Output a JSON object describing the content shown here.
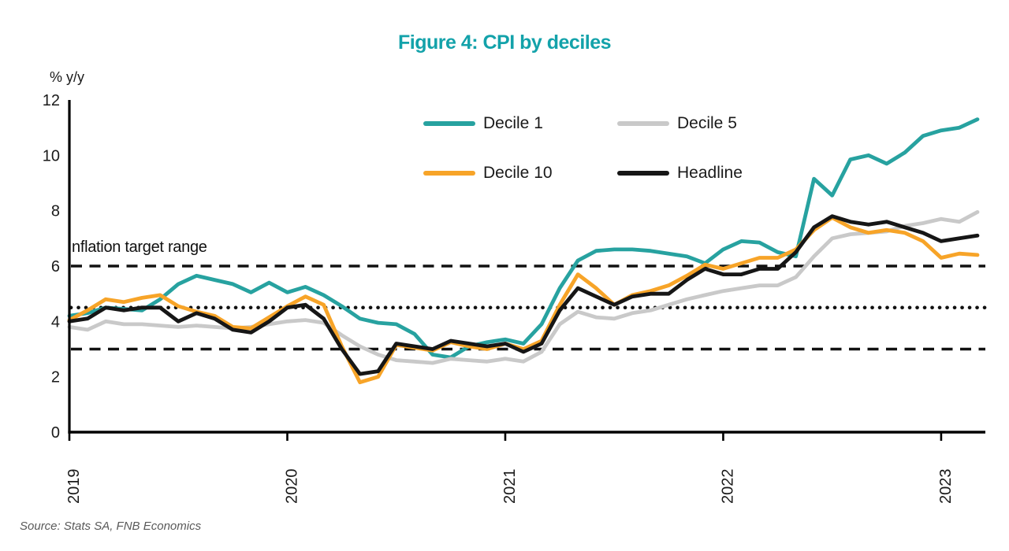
{
  "title": "Figure 4: CPI by deciles",
  "title_color": "#13a2aa",
  "source": "Source: Stats SA, FNB Economics",
  "annotation_label": "nflation target range",
  "legend": [
    {
      "label": "Decile 1",
      "color": "#27a2a0"
    },
    {
      "label": "Decile 5",
      "color": "#c9c9c9"
    },
    {
      "label": "Decile 10",
      "color": "#f7a428"
    },
    {
      "label": "Headline",
      "color": "#161616"
    }
  ],
  "chart_data": {
    "type": "line",
    "title": "Figure 4: CPI by deciles",
    "ylabel": "% y/y",
    "ylim": [
      0,
      12
    ],
    "y_ticks": [
      0,
      2,
      4,
      6,
      8,
      10,
      12
    ],
    "x_start": "2019-01",
    "x_end": "2023-03",
    "frequency": "monthly",
    "x_tick_labels": [
      "2019",
      "2020",
      "2021",
      "2022",
      "2023"
    ],
    "x_tick_month_indices": [
      0,
      12,
      24,
      36,
      48
    ],
    "grid": false,
    "legend_position": "top-center",
    "reference_lines": [
      {
        "name": "inflation-target-upper",
        "value": 6,
        "style": "dashed"
      },
      {
        "name": "inflation-target-midpoint",
        "value": 4.5,
        "style": "dotted"
      },
      {
        "name": "inflation-target-lower",
        "value": 3,
        "style": "dashed"
      }
    ],
    "annotation": {
      "text": "nflation target range",
      "near_value": 6.4
    },
    "series": [
      {
        "name": "Decile 1",
        "color": "#27a2a0",
        "values": [
          4.2,
          4.3,
          4.5,
          4.45,
          4.4,
          4.8,
          5.35,
          5.65,
          5.5,
          5.35,
          5.05,
          5.4,
          5.05,
          5.25,
          4.95,
          4.55,
          4.1,
          3.95,
          3.9,
          3.55,
          2.8,
          2.7,
          3.1,
          3.25,
          3.35,
          3.2,
          3.9,
          5.2,
          6.2,
          6.55,
          6.6,
          6.6,
          6.55,
          6.45,
          6.35,
          6.1,
          6.6,
          6.9,
          6.85,
          6.5,
          6.35,
          9.15,
          8.55,
          9.85,
          10.0,
          9.7,
          10.1,
          10.7,
          10.9,
          11.0,
          11.3
        ]
      },
      {
        "name": "Decile 5",
        "color": "#c9c9c9",
        "values": [
          3.8,
          3.7,
          4.0,
          3.9,
          3.9,
          3.85,
          3.8,
          3.85,
          3.8,
          3.75,
          3.8,
          3.9,
          4.0,
          4.05,
          3.95,
          3.5,
          3.1,
          2.8,
          2.6,
          2.55,
          2.5,
          2.65,
          2.6,
          2.55,
          2.65,
          2.55,
          2.9,
          3.9,
          4.35,
          4.15,
          4.1,
          4.3,
          4.4,
          4.6,
          4.8,
          4.95,
          5.1,
          5.2,
          5.3,
          5.3,
          5.6,
          6.35,
          7.0,
          7.15,
          7.2,
          7.25,
          7.45,
          7.55,
          7.7,
          7.6,
          7.95
        ]
      },
      {
        "name": "Decile 10",
        "color": "#f7a428",
        "values": [
          4.05,
          4.4,
          4.8,
          4.7,
          4.85,
          4.95,
          4.55,
          4.35,
          4.2,
          3.8,
          3.75,
          4.15,
          4.55,
          4.9,
          4.6,
          3.1,
          1.8,
          2.0,
          3.15,
          3.05,
          2.95,
          3.25,
          3.1,
          3.0,
          3.2,
          3.0,
          3.3,
          4.6,
          5.7,
          5.2,
          4.6,
          4.95,
          5.1,
          5.3,
          5.65,
          6.05,
          5.9,
          6.1,
          6.3,
          6.3,
          6.6,
          7.3,
          7.75,
          7.4,
          7.2,
          7.3,
          7.2,
          6.9,
          6.3,
          6.45,
          6.4
        ]
      },
      {
        "name": "Headline",
        "color": "#161616",
        "values": [
          4.0,
          4.1,
          4.5,
          4.4,
          4.5,
          4.5,
          4.0,
          4.3,
          4.1,
          3.7,
          3.6,
          4.0,
          4.5,
          4.6,
          4.1,
          3.0,
          2.1,
          2.2,
          3.2,
          3.1,
          3.0,
          3.3,
          3.2,
          3.1,
          3.2,
          2.9,
          3.2,
          4.4,
          5.2,
          4.9,
          4.6,
          4.9,
          5.0,
          5.0,
          5.5,
          5.9,
          5.7,
          5.7,
          5.9,
          5.9,
          6.5,
          7.4,
          7.8,
          7.6,
          7.5,
          7.6,
          7.4,
          7.2,
          6.9,
          7.0,
          7.1
        ]
      }
    ]
  }
}
